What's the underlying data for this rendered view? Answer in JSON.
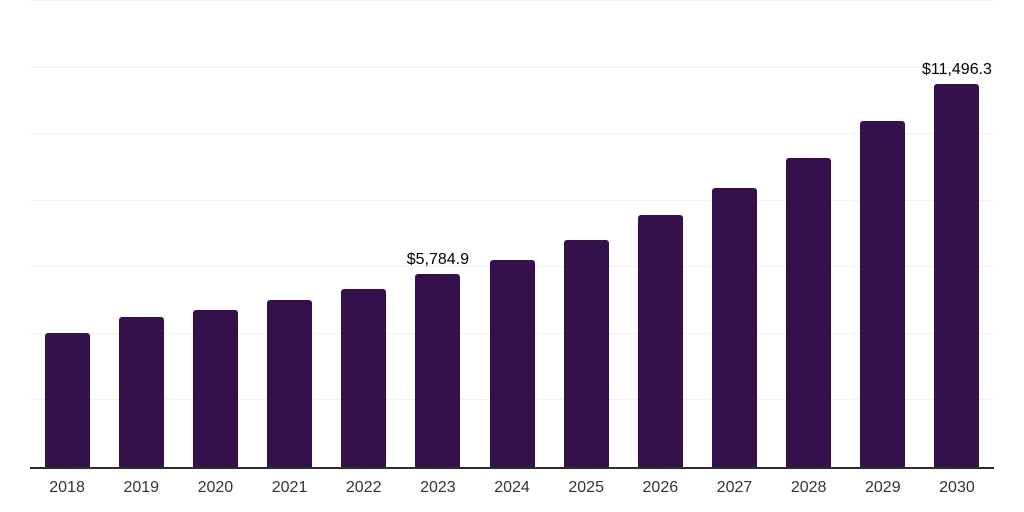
{
  "chart_data": {
    "type": "bar",
    "title": "",
    "xlabel": "",
    "ylabel": "",
    "categories": [
      "2018",
      "2019",
      "2020",
      "2021",
      "2022",
      "2023",
      "2024",
      "2025",
      "2026",
      "2027",
      "2028",
      "2029",
      "2030"
    ],
    "values": [
      4040,
      4520,
      4730,
      5030,
      5360,
      5784.9,
      6230,
      6830,
      7580,
      8380,
      9280,
      10390,
      11496.3
    ],
    "value_labels": {
      "2023": "$5,784.9",
      "2030": "$11,496.3"
    },
    "ylim": [
      0,
      14000
    ],
    "gridline_step": 2000,
    "grid": "horizontal-only",
    "legend": "none",
    "colors": {
      "bar": "#35114B",
      "axis_line": "#2d2d2d",
      "gridline": "#f2f2f4",
      "value_label_text": "#000000",
      "tick_label_text": "#333333"
    }
  }
}
